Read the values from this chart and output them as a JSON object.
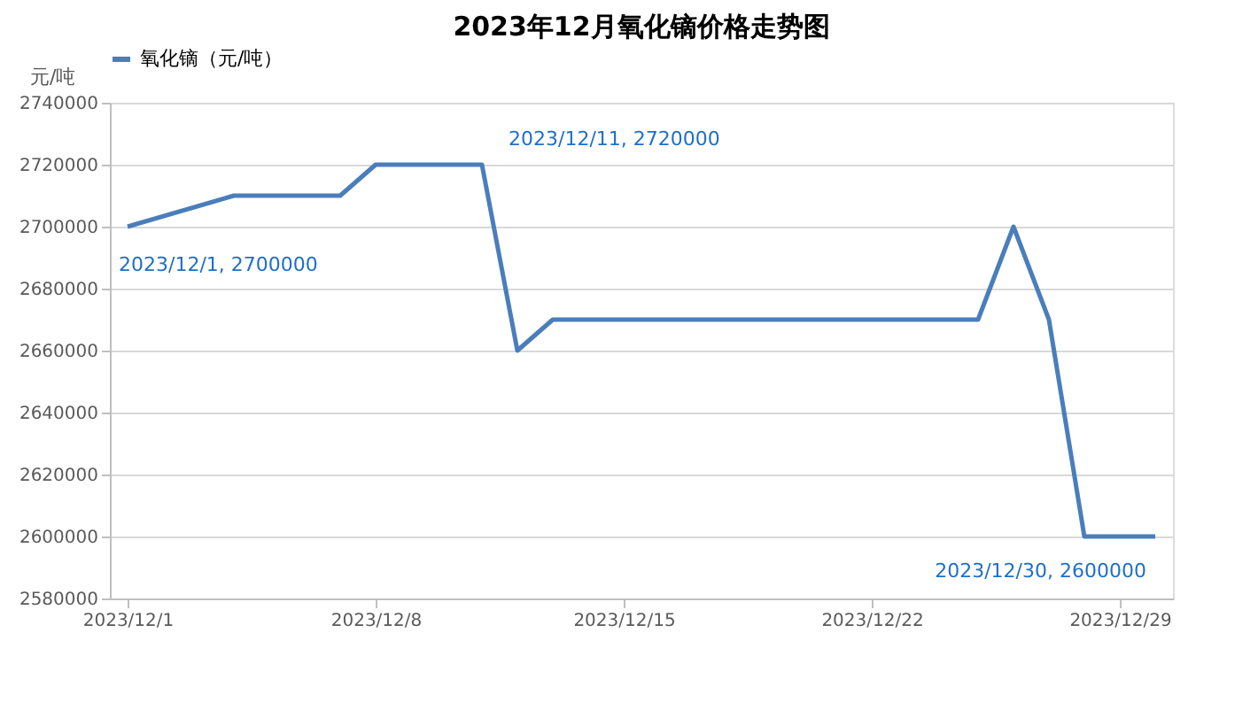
{
  "chart_data": {
    "type": "line",
    "title": "2023年12月氧化镝价格走势图",
    "ylabel": "元/吨",
    "x": [
      "2023-12-01",
      "2023-12-04",
      "2023-12-05",
      "2023-12-06",
      "2023-12-07",
      "2023-12-08",
      "2023-12-11",
      "2023-12-12",
      "2023-12-13",
      "2023-12-14",
      "2023-12-15",
      "2023-12-18",
      "2023-12-19",
      "2023-12-20",
      "2023-12-21",
      "2023-12-22",
      "2023-12-25",
      "2023-12-26",
      "2023-12-27",
      "2023-12-28",
      "2023-12-29",
      "2023-12-30"
    ],
    "series": [
      {
        "name": "氧化镝（元/吨）",
        "color": "#4a7ebb",
        "values": [
          2700000,
          2710000,
          2710000,
          2710000,
          2710000,
          2720000,
          2720000,
          2660000,
          2670000,
          2670000,
          2670000,
          2670000,
          2670000,
          2670000,
          2670000,
          2670000,
          2670000,
          2700000,
          2670000,
          2600000,
          2600000,
          2600000
        ]
      }
    ],
    "xlim": [
      "2023-11-30T12:00",
      "2023-12-30T12:00"
    ],
    "xticks": [
      {
        "value": "2023-12-01",
        "label": "2023/12/1"
      },
      {
        "value": "2023-12-08",
        "label": "2023/12/8"
      },
      {
        "value": "2023-12-15",
        "label": "2023/12/15"
      },
      {
        "value": "2023-12-22",
        "label": "2023/12/22"
      },
      {
        "value": "2023-12-29",
        "label": "2023/12/29"
      }
    ],
    "ylim": [
      2580000,
      2740000
    ],
    "yticks": [
      2580000,
      2600000,
      2620000,
      2640000,
      2660000,
      2680000,
      2700000,
      2720000,
      2740000
    ],
    "grid": "y",
    "legend": "top",
    "marker": "none",
    "line_style": "solid",
    "annotations": [
      {
        "text": "2023/12/1, 2700000",
        "x": "2023-12-01",
        "y": 2700000
      },
      {
        "text": "2023/12/11, 2720000",
        "x": "2023-12-11",
        "y": 2720000
      },
      {
        "text": "2023/12/30, 2600000",
        "x": "2023-12-30",
        "y": 2600000
      }
    ]
  }
}
